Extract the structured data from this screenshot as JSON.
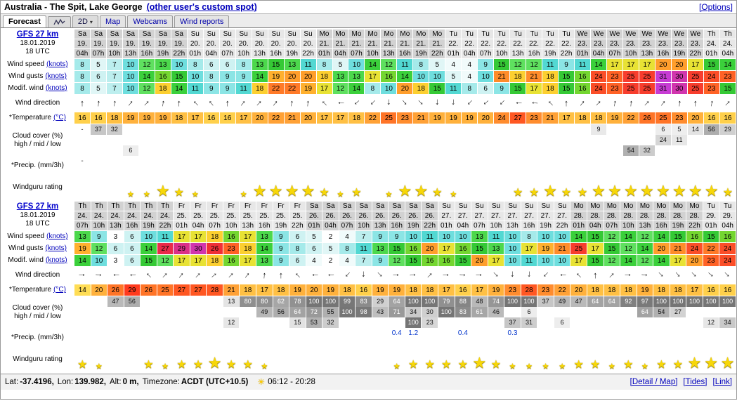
{
  "header": {
    "title": "Australia - The Spit, Lake George",
    "custom_spot_link": "(other user's custom spot)",
    "options_link": "[Options]"
  },
  "tabs": {
    "forecast": "Forecast",
    "view2d": "2D",
    "map": "Map",
    "webcams": "Webcams",
    "wind_reports": "Wind reports"
  },
  "glyphs": {
    "arrow": "↑",
    "star": "★",
    "caret": "▾",
    "sun": "☀"
  },
  "colors": {
    "link_blue": "#0000bb",
    "star_yellow": "#f7d708",
    "precip_blue": "#0033cc"
  },
  "row_labels": {
    "wind_speed": {
      "text": "Wind speed",
      "link": "(knots)"
    },
    "wind_gusts": {
      "text": "Wind gusts",
      "link": "(knots)"
    },
    "modif_wind": {
      "text": "Modif. wind",
      "link": "(knots)"
    },
    "wind_direction": {
      "text": "Wind direction",
      "link": ""
    },
    "temperature": {
      "text": "*Temperature",
      "link": "(°C)"
    },
    "cloud_cover": {
      "text": "Cloud cover (%)",
      "link": "",
      "second_line": "high / mid / low"
    },
    "precip": {
      "text": "*Precip. (mm/3h)",
      "link": ""
    },
    "rating": {
      "text": "Windguru rating",
      "link": ""
    }
  },
  "tables": [
    {
      "model": "GFS 27 km",
      "run_date": "18.01.2019",
      "run_utc": "18 UTC",
      "days": [
        "Sa",
        "Sa",
        "Sa",
        "Sa",
        "Sa",
        "Sa",
        "Sa",
        "Su",
        "Su",
        "Su",
        "Su",
        "Su",
        "Su",
        "Su",
        "Su",
        "Mo",
        "Mo",
        "Mo",
        "Mo",
        "Mo",
        "Mo",
        "Mo",
        "Mo",
        "Tu",
        "Tu",
        "Tu",
        "Tu",
        "Tu",
        "Tu",
        "Tu",
        "Tu",
        "We",
        "We",
        "We",
        "We",
        "We",
        "We",
        "We",
        "We",
        "Th",
        "Th"
      ],
      "dates": [
        "19.",
        "19.",
        "19.",
        "19.",
        "19.",
        "19.",
        "19.",
        "20.",
        "20.",
        "20.",
        "20.",
        "20.",
        "20.",
        "20.",
        "20.",
        "21.",
        "21.",
        "21.",
        "21.",
        "21.",
        "21.",
        "21.",
        "21.",
        "22.",
        "22.",
        "22.",
        "22.",
        "22.",
        "22.",
        "22.",
        "22.",
        "23.",
        "23.",
        "23.",
        "23.",
        "23.",
        "23.",
        "23.",
        "23.",
        "24.",
        "24."
      ],
      "hours": [
        "04h",
        "07h",
        "10h",
        "13h",
        "16h",
        "19h",
        "22h",
        "01h",
        "04h",
        "07h",
        "10h",
        "13h",
        "16h",
        "19h",
        "22h",
        "01h",
        "04h",
        "07h",
        "10h",
        "13h",
        "16h",
        "19h",
        "22h",
        "01h",
        "04h",
        "07h",
        "10h",
        "13h",
        "16h",
        "19h",
        "22h",
        "01h",
        "04h",
        "07h",
        "10h",
        "13h",
        "16h",
        "19h",
        "22h",
        "01h",
        "04h"
      ],
      "wind_speed": [
        8,
        5,
        7,
        10,
        12,
        13,
        10,
        8,
        6,
        6,
        8,
        13,
        15,
        13,
        11,
        8,
        5,
        10,
        14,
        12,
        11,
        8,
        5,
        4,
        4,
        9,
        15,
        12,
        12,
        11,
        9,
        11,
        14,
        17,
        17,
        17,
        20,
        20,
        17,
        15,
        14
      ],
      "wind_gusts": [
        8,
        6,
        7,
        10,
        14,
        16,
        15,
        10,
        8,
        9,
        9,
        14,
        19,
        20,
        20,
        18,
        13,
        13,
        17,
        16,
        14,
        10,
        10,
        5,
        4,
        10,
        21,
        18,
        21,
        18,
        15,
        16,
        24,
        23,
        25,
        25,
        31,
        30,
        25,
        24,
        23
      ],
      "modif_wind": [
        8,
        5,
        7,
        10,
        12,
        18,
        14,
        11,
        9,
        9,
        11,
        18,
        22,
        22,
        19,
        17,
        12,
        14,
        8,
        10,
        20,
        18,
        15,
        11,
        8,
        6,
        9,
        15,
        17,
        18,
        15,
        16,
        24,
        23,
        25,
        25,
        31,
        30,
        25,
        23,
        15
      ],
      "wind_dir_deg": [
        0,
        5,
        10,
        40,
        45,
        10,
        0,
        315,
        320,
        0,
        40,
        45,
        40,
        10,
        5,
        315,
        270,
        230,
        225,
        180,
        140,
        135,
        180,
        185,
        225,
        230,
        225,
        270,
        275,
        315,
        0,
        40,
        45,
        10,
        5,
        45,
        40,
        5,
        0,
        10,
        45
      ],
      "temperature": [
        16,
        16,
        18,
        19,
        19,
        19,
        18,
        17,
        16,
        16,
        17,
        20,
        22,
        21,
        20,
        17,
        17,
        18,
        22,
        25,
        23,
        21,
        19,
        19,
        19,
        20,
        24,
        27,
        23,
        21,
        17,
        18,
        18,
        19,
        22,
        26,
        25,
        23,
        20,
        16,
        16
      ],
      "cloud_high": [
        "-",
        "37",
        "32",
        "",
        "",
        "",
        "",
        "",
        "",
        "",
        "",
        "",
        "",
        "",
        "",
        "",
        "",
        "",
        "",
        "",
        "",
        "",
        "",
        "",
        "",
        "",
        "",
        "",
        "",
        "",
        "",
        "",
        "9",
        "",
        "",
        "",
        "6",
        "5",
        "14",
        "56",
        "29"
      ],
      "cloud_mid": [
        "",
        "",
        "",
        "",
        "",
        "",
        "",
        "",
        "",
        "",
        "",
        "",
        "",
        "",
        "",
        "",
        "",
        "",
        "",
        "",
        "",
        "",
        "",
        "",
        "",
        "",
        "",
        "",
        "",
        "",
        "",
        "",
        "",
        "",
        "",
        "",
        "24",
        "11",
        "",
        "",
        ""
      ],
      "cloud_low": [
        "",
        "",
        "",
        "6",
        "",
        "",
        "",
        "",
        "",
        "",
        "",
        "",
        "",
        "",
        "",
        "",
        "",
        "",
        "",
        "",
        "",
        "",
        "",
        "",
        "",
        "",
        "",
        "",
        "",
        "",
        "",
        "",
        "",
        "",
        "54",
        "32",
        "",
        "",
        "",
        "",
        ""
      ],
      "precip": [
        "-",
        "",
        "",
        "",
        "",
        "",
        "",
        "",
        "",
        "",
        "",
        "",
        "",
        "",
        "",
        "",
        "",
        "",
        "",
        "",
        "",
        "",
        "",
        "",
        "",
        "",
        "",
        "",
        "",
        "",
        "",
        "",
        "",
        "",
        "",
        "",
        "",
        "",
        "",
        "",
        ""
      ],
      "rating": [
        0,
        0,
        0,
        1,
        1,
        3,
        2,
        1,
        0,
        0,
        1,
        3,
        3,
        3,
        3,
        2,
        1,
        2,
        0,
        1,
        3,
        3,
        2,
        1,
        0,
        0,
        0,
        2,
        2,
        3,
        2,
        2,
        3,
        3,
        3,
        3,
        3,
        3,
        3,
        3,
        2
      ]
    },
    {
      "model": "GFS 27 km",
      "run_date": "18.01.2019",
      "run_utc": "18 UTC",
      "days": [
        "Th",
        "Th",
        "Th",
        "Th",
        "Th",
        "Th",
        "Fr",
        "Fr",
        "Fr",
        "Fr",
        "Fr",
        "Fr",
        "Fr",
        "Fr",
        "Sa",
        "Sa",
        "Sa",
        "Sa",
        "Sa",
        "Sa",
        "Sa",
        "Sa",
        "Su",
        "Su",
        "Su",
        "Su",
        "Su",
        "Su",
        "Su",
        "Su",
        "Mo",
        "Mo",
        "Mo",
        "Mo",
        "Mo",
        "Mo",
        "Mo",
        "Mo",
        "Tu",
        "Tu"
      ],
      "dates": [
        "24.",
        "24.",
        "24.",
        "24.",
        "24.",
        "24.",
        "25.",
        "25.",
        "25.",
        "25.",
        "25.",
        "25.",
        "25.",
        "25.",
        "26.",
        "26.",
        "26.",
        "26.",
        "26.",
        "26.",
        "26.",
        "26.",
        "27.",
        "27.",
        "27.",
        "27.",
        "27.",
        "27.",
        "27.",
        "27.",
        "28.",
        "28.",
        "28.",
        "28.",
        "28.",
        "28.",
        "28.",
        "28.",
        "29.",
        "29."
      ],
      "hours": [
        "07h",
        "10h",
        "13h",
        "16h",
        "19h",
        "22h",
        "01h",
        "04h",
        "07h",
        "10h",
        "13h",
        "16h",
        "19h",
        "22h",
        "01h",
        "04h",
        "07h",
        "10h",
        "13h",
        "16h",
        "19h",
        "22h",
        "01h",
        "04h",
        "07h",
        "10h",
        "13h",
        "16h",
        "19h",
        "22h",
        "01h",
        "04h",
        "07h",
        "10h",
        "13h",
        "16h",
        "19h",
        "22h",
        "01h",
        "04h"
      ],
      "wind_speed": [
        13,
        9,
        3,
        6,
        10,
        11,
        17,
        17,
        18,
        16,
        17,
        13,
        9,
        6,
        5,
        2,
        4,
        7,
        9,
        9,
        10,
        11,
        10,
        10,
        13,
        11,
        10,
        8,
        10,
        10,
        14,
        15,
        12,
        14,
        12,
        14,
        15,
        16,
        15,
        16
      ],
      "wind_gusts": [
        19,
        12,
        6,
        6,
        14,
        27,
        29,
        30,
        26,
        23,
        18,
        14,
        9,
        8,
        6,
        5,
        8,
        11,
        13,
        15,
        16,
        20,
        17,
        16,
        15,
        13,
        10,
        17,
        19,
        21,
        25,
        17,
        15,
        12,
        14,
        20,
        21,
        24,
        22,
        24
      ],
      "modif_wind": [
        14,
        10,
        3,
        6,
        15,
        12,
        17,
        17,
        18,
        16,
        17,
        13,
        9,
        6,
        4,
        2,
        4,
        7,
        9,
        12,
        15,
        16,
        16,
        15,
        20,
        17,
        10,
        11,
        10,
        10,
        17,
        15,
        12,
        14,
        12,
        14,
        17,
        20,
        23,
        24
      ],
      "wind_dir_deg": [
        90,
        95,
        270,
        265,
        315,
        45,
        40,
        45,
        50,
        45,
        40,
        5,
        0,
        315,
        270,
        265,
        225,
        180,
        135,
        90,
        85,
        45,
        90,
        95,
        90,
        135,
        180,
        185,
        225,
        270,
        315,
        0,
        45,
        90,
        95,
        135,
        140,
        135,
        130,
        135
      ],
      "temperature": [
        14,
        20,
        26,
        29,
        26,
        25,
        27,
        27,
        28,
        21,
        18,
        17,
        18,
        19,
        20,
        19,
        18,
        16,
        19,
        19,
        18,
        18,
        17,
        16,
        17,
        19,
        23,
        28,
        23,
        22,
        20,
        18,
        18,
        18,
        19,
        18,
        18,
        17,
        16,
        16
      ],
      "cloud_high": [
        "",
        "",
        "47",
        "56",
        "",
        "",
        "",
        "",
        "",
        "13",
        "80",
        "80",
        "62",
        "78",
        "100",
        "100",
        "99",
        "83",
        "29",
        "64",
        "100",
        "100",
        "79",
        "88",
        "48",
        "74",
        "100",
        "100",
        "37",
        "49",
        "47",
        "64",
        "64",
        "92",
        "97",
        "100",
        "100",
        "100",
        "100",
        "100"
      ],
      "cloud_mid": [
        "",
        "",
        "",
        "",
        "",
        "",
        "",
        "",
        "",
        "",
        "",
        "49",
        "56",
        "64",
        "72",
        "55",
        "100",
        "98",
        "43",
        "71",
        "34",
        "30",
        "100",
        "83",
        "61",
        "46",
        "",
        "6",
        "",
        "",
        "",
        "",
        "",
        "",
        "64",
        "54",
        "27",
        "",
        "",
        ""
      ],
      "cloud_low": [
        "",
        "",
        "",
        "",
        "",
        "",
        "",
        "",
        "",
        "12",
        "",
        "",
        "",
        "15",
        "53",
        "32",
        "",
        "",
        "",
        "",
        "100",
        "23",
        "",
        "",
        "",
        "",
        "37",
        "31",
        "",
        "6",
        "",
        "",
        "",
        "",
        "",
        "",
        "",
        "",
        "12",
        "34"
      ],
      "precip": [
        "",
        "",
        "",
        "",
        "",
        "",
        "",
        "",
        "",
        "",
        "",
        "",
        "",
        "",
        "",
        "",
        "",
        "",
        "",
        "0.4",
        "1.2",
        "",
        "",
        "0.4",
        "",
        "",
        "0.3",
        "",
        "",
        "",
        "",
        "",
        "",
        "",
        "",
        "",
        "",
        "",
        "",
        ""
      ],
      "rating": [
        2,
        1,
        0,
        0,
        2,
        1,
        2,
        2,
        3,
        2,
        2,
        1,
        0,
        0,
        0,
        0,
        0,
        0,
        0,
        1,
        2,
        2,
        2,
        2,
        3,
        2,
        1,
        1,
        1,
        1,
        2,
        2,
        1,
        2,
        1,
        2,
        2,
        3,
        3,
        3
      ]
    }
  ],
  "footer": {
    "info_parts": [
      [
        "Lat:",
        "-37.4196,"
      ],
      [
        "Lon:",
        "139.982,"
      ],
      [
        "Alt:",
        "0 m,"
      ],
      [
        "Timezone:",
        "ACDT (UTC+10.5)"
      ]
    ],
    "sun_times": "06:12 - 20:28",
    "links": [
      "[Detail / Map]",
      "[Tides]",
      "[Link]"
    ]
  }
}
